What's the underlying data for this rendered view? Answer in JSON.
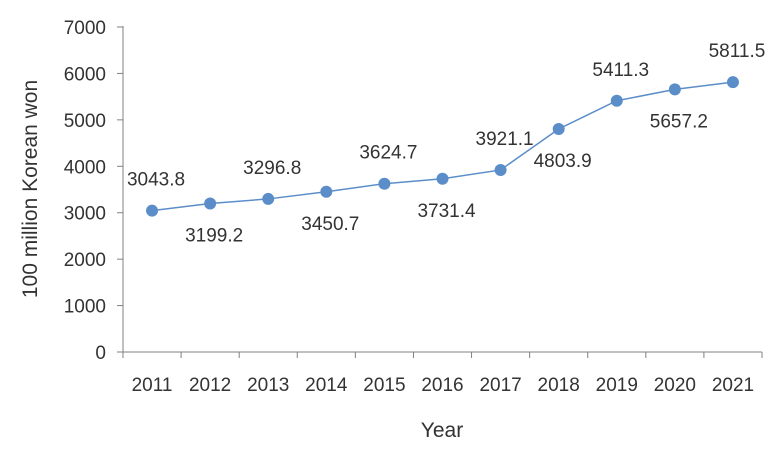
{
  "chart_data": {
    "type": "line",
    "x": [
      "2011",
      "2012",
      "2013",
      "2014",
      "2015",
      "2016",
      "2017",
      "2018",
      "2019",
      "2020",
      "2021"
    ],
    "series": [
      {
        "values": [
          3043.8,
          3199.2,
          3296.8,
          3450.7,
          3624.7,
          3731.4,
          3921.1,
          4803.9,
          5411.3,
          5657.2,
          5811.5
        ],
        "labels": [
          "3043.8",
          "3199.2",
          "3296.8",
          "3450.7",
          "3624.7",
          "3731.4",
          "3921.1",
          "4803.9",
          "5411.3",
          "5657.2",
          "5811.5"
        ],
        "color": "#5b8ec9"
      }
    ],
    "xlabel": "Year",
    "ylabel": "100 million Korean won",
    "ylim": [
      0,
      7000
    ],
    "yticks": [
      "0",
      "1000",
      "2000",
      "3000",
      "4000",
      "5000",
      "6000",
      "7000"
    ],
    "grid": false,
    "legend": "none"
  }
}
